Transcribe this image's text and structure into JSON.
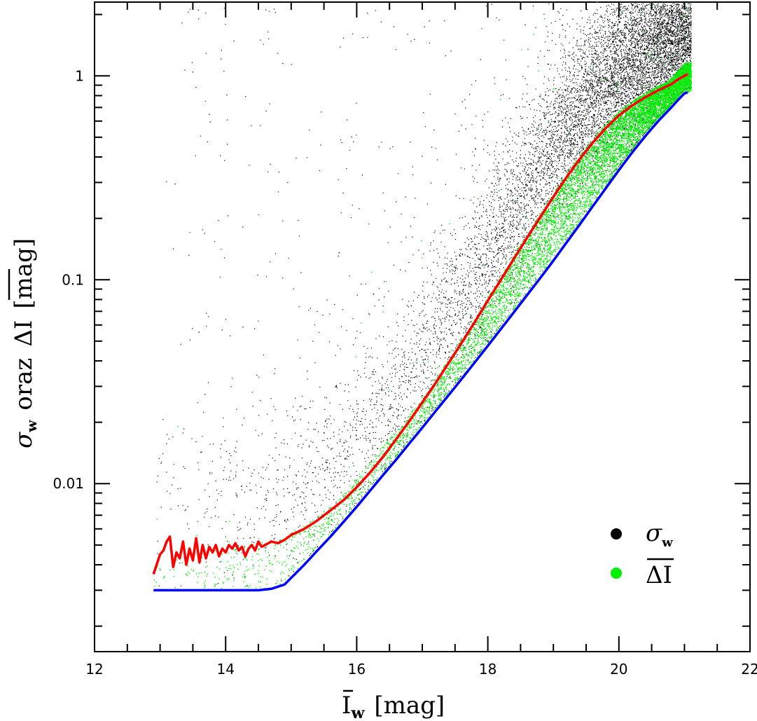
{
  "chart_data": {
    "type": "scatter",
    "title": "",
    "xlabel": {
      "symbol": "I",
      "subscript": "w",
      "unit": "[mag]"
    },
    "ylabel": {
      "sigma": "σ",
      "sigma_sub": "w",
      "conj": "oraz",
      "delta": "ΔI",
      "unit": "[mag]"
    },
    "xlim": [
      12,
      22
    ],
    "ylim": [
      0.0015,
      2.3
    ],
    "yscale": "log",
    "x_ticks": [
      12,
      14,
      16,
      18,
      20,
      22
    ],
    "x_tick_labels": [
      "12",
      "14",
      "16",
      "18",
      "20",
      "22"
    ],
    "y_ticks": [
      0.01,
      0.1,
      1
    ],
    "y_tick_labels": [
      "0.01",
      "0.1",
      "1"
    ],
    "grid": false,
    "legend": {
      "placement": "bottom-right",
      "entries": [
        {
          "symbol": "σ",
          "subscript": "w",
          "color": "#000000"
        },
        {
          "symbol": "ΔI",
          "overline": true,
          "color": "#00ee00"
        }
      ]
    },
    "colors": {
      "sigma_points": "#000000",
      "delta_points": "#00ee00",
      "median_line": "#ff0000",
      "lower_envelope": "#0000ff"
    },
    "series": [
      {
        "type": "line",
        "color": "#ff0000",
        "x": [
          12.9,
          13.0,
          13.05,
          13.1,
          13.15,
          13.2,
          13.25,
          13.3,
          13.35,
          13.4,
          13.45,
          13.5,
          13.55,
          13.6,
          13.65,
          13.7,
          13.75,
          13.8,
          13.85,
          13.9,
          13.95,
          14.0,
          14.05,
          14.1,
          14.15,
          14.2,
          14.25,
          14.3,
          14.35,
          14.4,
          14.45,
          14.5,
          14.55,
          14.6,
          14.7,
          14.8,
          14.9,
          15.0,
          15.2,
          15.4,
          15.6,
          15.8,
          16.0,
          16.2,
          16.4,
          16.6,
          16.8,
          17.0,
          17.2,
          17.4,
          17.6,
          17.8,
          18.0,
          18.2,
          18.4,
          18.6,
          18.8,
          19.0,
          19.2,
          19.4,
          19.6,
          19.8,
          20.0,
          20.2,
          20.4,
          20.6,
          20.8,
          20.9,
          21.0,
          21.05
        ],
        "y": [
          0.0036,
          0.0045,
          0.0047,
          0.0052,
          0.0055,
          0.0039,
          0.0046,
          0.0043,
          0.0052,
          0.004,
          0.0048,
          0.0042,
          0.0054,
          0.0041,
          0.005,
          0.0043,
          0.0049,
          0.0046,
          0.005,
          0.0044,
          0.0048,
          0.0046,
          0.005,
          0.0048,
          0.0051,
          0.0047,
          0.0049,
          0.0044,
          0.0048,
          0.005,
          0.0047,
          0.0052,
          0.0049,
          0.005,
          0.0052,
          0.0051,
          0.0053,
          0.0056,
          0.006,
          0.0066,
          0.0074,
          0.0083,
          0.0096,
          0.0113,
          0.0135,
          0.0165,
          0.0202,
          0.025,
          0.031,
          0.039,
          0.049,
          0.062,
          0.079,
          0.1,
          0.127,
          0.161,
          0.203,
          0.255,
          0.318,
          0.39,
          0.47,
          0.555,
          0.64,
          0.715,
          0.785,
          0.85,
          0.91,
          0.96,
          1.0,
          1.02
        ]
      },
      {
        "type": "line",
        "color": "#0000ff",
        "x": [
          12.9,
          13.5,
          14.0,
          14.5,
          14.7,
          14.9,
          15.0,
          15.2,
          15.4,
          15.6,
          15.8,
          16.0,
          16.2,
          16.4,
          16.6,
          16.8,
          17.0,
          17.2,
          17.4,
          17.6,
          17.8,
          18.0,
          18.2,
          18.4,
          18.6,
          18.8,
          19.0,
          19.2,
          19.4,
          19.6,
          19.8,
          20.0,
          20.2,
          20.4,
          20.6,
          20.8,
          20.9,
          21.0,
          21.05
        ],
        "y": [
          0.003,
          0.003,
          0.003,
          0.003,
          0.00305,
          0.0032,
          0.00345,
          0.004,
          0.0047,
          0.0055,
          0.0065,
          0.0077,
          0.0092,
          0.011,
          0.0131,
          0.0157,
          0.0188,
          0.0226,
          0.0271,
          0.0326,
          0.0393,
          0.0474,
          0.0573,
          0.0694,
          0.0842,
          0.102,
          0.124,
          0.152,
          0.186,
          0.229,
          0.281,
          0.345,
          0.42,
          0.505,
          0.6,
          0.7,
          0.76,
          0.82,
          0.83
        ]
      }
    ]
  }
}
